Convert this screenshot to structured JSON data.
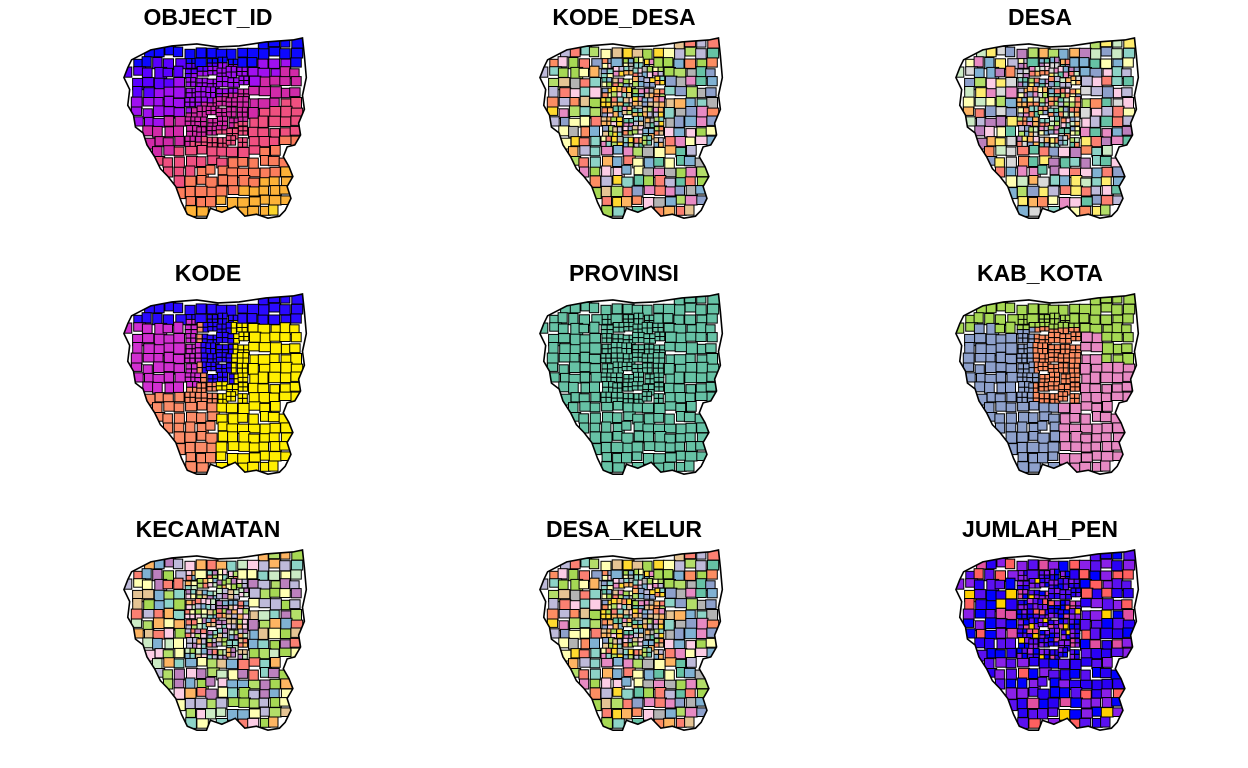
{
  "figure": {
    "panels": [
      {
        "title": "OBJECT_ID",
        "scheme": "sequential-plasma",
        "palette": [
          "#0d08ff",
          "#5b00ff",
          "#a010f0",
          "#d02aa8",
          "#ef5080",
          "#fb7d5c",
          "#fdb238",
          "#fad52c"
        ]
      },
      {
        "title": "KODE_DESA",
        "scheme": "categorical-mixed",
        "palette": [
          "#66c2a5",
          "#fc8d62",
          "#8da0cb",
          "#e78ac3",
          "#a6d854",
          "#ffd92f",
          "#e5c494",
          "#b3b3b3",
          "#8dd3c7",
          "#ffffb3",
          "#bebada",
          "#fb8072",
          "#80b1d3",
          "#fdb462",
          "#b3de69",
          "#fccde5"
        ]
      },
      {
        "title": "DESA",
        "scheme": "categorical-mixed",
        "palette": [
          "#8dd3c7",
          "#ffffb3",
          "#bebada",
          "#fb8072",
          "#80b1d3",
          "#fdb462",
          "#b3de69",
          "#fccde5",
          "#d9d9d9",
          "#bc80bd",
          "#ccebc5",
          "#ffed6f",
          "#66c2a5",
          "#fc8d62",
          "#8da0cb",
          "#e78ac3"
        ]
      },
      {
        "title": "KODE",
        "scheme": "sequential-plasma-bands",
        "palette": [
          "#2a0aff",
          "#d12fd0",
          "#fb8c68",
          "#ffee00"
        ]
      },
      {
        "title": "PROVINSI",
        "scheme": "single",
        "palette": [
          "#66c2a5"
        ]
      },
      {
        "title": "KAB_KOTA",
        "scheme": "categorical-bands",
        "palette": [
          "#a6d854",
          "#fc8d62",
          "#8da0cb",
          "#e78ac3"
        ]
      },
      {
        "title": "KECAMATAN",
        "scheme": "categorical-mixed",
        "palette": [
          "#ffffb3",
          "#fccde5",
          "#bebada",
          "#80b1d3",
          "#8dd3c7",
          "#fb8072",
          "#fdb462",
          "#b3de69",
          "#bc80bd",
          "#ccebc5",
          "#e5c494",
          "#a6d854"
        ]
      },
      {
        "title": "DESA_KELUR",
        "scheme": "categorical-mixed",
        "palette": [
          "#66c2a5",
          "#fc8d62",
          "#8da0cb",
          "#e78ac3",
          "#a6d854",
          "#ffd92f",
          "#e5c494",
          "#b3b3b3",
          "#8dd3c7",
          "#ffffb3",
          "#bebada",
          "#fb8072",
          "#80b1d3",
          "#fdb462",
          "#b3de69",
          "#fccde5"
        ]
      },
      {
        "title": "JUMLAH_PEN",
        "scheme": "sequential-blue-purple",
        "palette": [
          "#0000ff",
          "#2a00f5",
          "#5a10f0",
          "#8a20e8",
          "#b030e0",
          "#e050a0",
          "#ff6060",
          "#ffd000"
        ]
      }
    ]
  }
}
